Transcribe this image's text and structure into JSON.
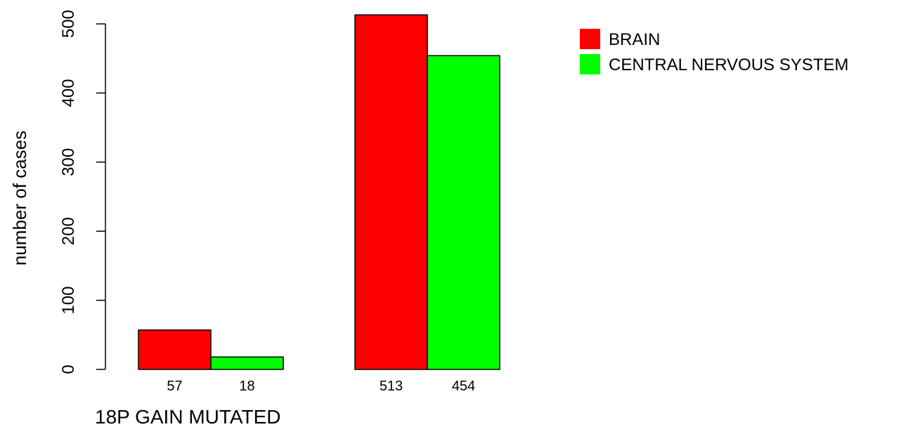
{
  "chart_data": {
    "type": "bar",
    "title": "",
    "xlabel": "18P GAIN MUTATED",
    "ylabel": "number of cases",
    "ylim": [
      0,
      500
    ],
    "yticks": [
      0,
      100,
      200,
      300,
      400,
      500
    ],
    "grid": false,
    "legend_position": "top-right",
    "groups": [
      "",
      ""
    ],
    "series": [
      {
        "name": "BRAIN",
        "color": "#ff0000",
        "values": [
          57,
          513
        ],
        "labels": [
          "57",
          "513"
        ]
      },
      {
        "name": "CENTRAL NERVOUS SYSTEM",
        "color": "#00ff00",
        "values": [
          18,
          454
        ],
        "labels": [
          "18",
          "454"
        ]
      }
    ]
  }
}
